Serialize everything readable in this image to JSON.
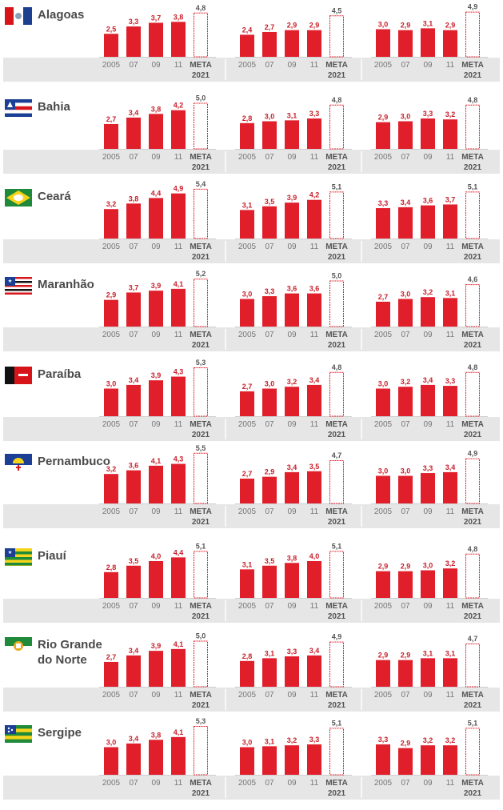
{
  "colors": {
    "bar": "#e01f2b",
    "meta_outline": "#e01f2b",
    "axis_band": "#e6e6e6",
    "value_label": "#c81f2a",
    "name": "#4a4a4a"
  },
  "tick_labels": [
    "2005",
    "07",
    "09",
    "11"
  ],
  "meta_label": "META",
  "meta_year": "2021",
  "chart_data": {
    "type": "bar",
    "categories": [
      "2005",
      "07",
      "09",
      "11",
      "META 2021"
    ],
    "states": [
      {
        "name": "Alagoas",
        "flag": "flag-alagoas-icon",
        "panels": [
          {
            "values": [
              "2,5",
              "3,3",
              "3,7",
              "3,8"
            ],
            "meta": "4,8"
          },
          {
            "values": [
              "2,4",
              "2,7",
              "2,9",
              "2,9"
            ],
            "meta": "4,5"
          },
          {
            "values": [
              "3,0",
              "2,9",
              "3,1",
              "2,9"
            ],
            "meta": "4,9"
          }
        ]
      },
      {
        "name": "Bahia",
        "flag": "flag-bahia-icon",
        "panels": [
          {
            "values": [
              "2,7",
              "3,4",
              "3,8",
              "4,2"
            ],
            "meta": "5,0"
          },
          {
            "values": [
              "2,8",
              "3,0",
              "3,1",
              "3,3"
            ],
            "meta": "4,8"
          },
          {
            "values": [
              "2,9",
              "3,0",
              "3,3",
              "3,2"
            ],
            "meta": "4,8"
          }
        ]
      },
      {
        "name": "Ceará",
        "flag": "flag-ceara-icon",
        "panels": [
          {
            "values": [
              "3,2",
              "3,8",
              "4,4",
              "4,9"
            ],
            "meta": "5,4"
          },
          {
            "values": [
              "3,1",
              "3,5",
              "3,9",
              "4,2"
            ],
            "meta": "5,1"
          },
          {
            "values": [
              "3,3",
              "3,4",
              "3,6",
              "3,7"
            ],
            "meta": "5,1"
          }
        ]
      },
      {
        "name": "Maranhão",
        "flag": "flag-maranhao-icon",
        "panels": [
          {
            "values": [
              "2,9",
              "3,7",
              "3,9",
              "4,1"
            ],
            "meta": "5,2"
          },
          {
            "values": [
              "3,0",
              "3,3",
              "3,6",
              "3,6"
            ],
            "meta": "5,0"
          },
          {
            "values": [
              "2,7",
              "3,0",
              "3,2",
              "3,1"
            ],
            "meta": "4,6"
          }
        ]
      },
      {
        "name": "Paraíba",
        "flag": "flag-paraiba-icon",
        "panels": [
          {
            "values": [
              "3,0",
              "3,4",
              "3,9",
              "4,3"
            ],
            "meta": "5,3"
          },
          {
            "values": [
              "2,7",
              "3,0",
              "3,2",
              "3,4"
            ],
            "meta": "4,8"
          },
          {
            "values": [
              "3,0",
              "3,2",
              "3,4",
              "3,3"
            ],
            "meta": "4,8"
          }
        ]
      },
      {
        "name": "Pernambuco",
        "flag": "flag-pernambuco-icon",
        "panels": [
          {
            "values": [
              "3,2",
              "3,6",
              "4,1",
              "4,3"
            ],
            "meta": "5,5"
          },
          {
            "values": [
              "2,7",
              "2,9",
              "3,4",
              "3,5"
            ],
            "meta": "4,7"
          },
          {
            "values": [
              "3,0",
              "3,0",
              "3,3",
              "3,4"
            ],
            "meta": "4,9"
          }
        ]
      },
      {
        "name": "Piauí",
        "flag": "flag-piaui-icon",
        "panels": [
          {
            "values": [
              "2,8",
              "3,5",
              "4,0",
              "4,4"
            ],
            "meta": "5,1"
          },
          {
            "values": [
              "3,1",
              "3,5",
              "3,8",
              "4,0"
            ],
            "meta": "5,1"
          },
          {
            "values": [
              "2,9",
              "2,9",
              "3,0",
              "3,2"
            ],
            "meta": "4,8"
          }
        ]
      },
      {
        "name": "Rio Grande\ndo Norte",
        "flag": "flag-rio-grande-do-norte-icon",
        "panels": [
          {
            "values": [
              "2,7",
              "3,4",
              "3,9",
              "4,1"
            ],
            "meta": "5,0"
          },
          {
            "values": [
              "2,8",
              "3,1",
              "3,3",
              "3,4"
            ],
            "meta": "4,9"
          },
          {
            "values": [
              "2,9",
              "2,9",
              "3,1",
              "3,1"
            ],
            "meta": "4,7"
          }
        ]
      },
      {
        "name": "Sergipe",
        "flag": "flag-sergipe-icon",
        "panels": [
          {
            "values": [
              "3,0",
              "3,4",
              "3,8",
              "4,1"
            ],
            "meta": "5,3"
          },
          {
            "values": [
              "3,0",
              "3,1",
              "3,2",
              "3,3"
            ],
            "meta": "5,1"
          },
          {
            "values": [
              "3,3",
              "2,9",
              "3,2",
              "3,2"
            ],
            "meta": "5,1"
          }
        ]
      }
    ]
  }
}
